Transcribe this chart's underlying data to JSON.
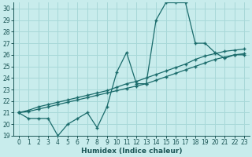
{
  "xlabel": "Humidex (Indice chaleur)",
  "bg_color": "#c8ecec",
  "grid_color": "#a8d8d8",
  "line_color": "#1a6b6b",
  "x": [
    0,
    1,
    2,
    3,
    4,
    5,
    6,
    7,
    8,
    9,
    10,
    11,
    12,
    13,
    14,
    15,
    16,
    17,
    18,
    19,
    20,
    21,
    22,
    23
  ],
  "y_main": [
    21,
    20.5,
    20.5,
    20.5,
    19,
    20,
    20.5,
    21,
    19.7,
    21.5,
    24.5,
    26.2,
    23.5,
    23.5,
    29,
    30.5,
    30.5,
    30.5,
    27,
    27,
    26.2,
    25.7,
    26,
    26
  ],
  "y_line1": [
    21.0,
    21.1,
    21.3,
    21.5,
    21.7,
    21.9,
    22.1,
    22.3,
    22.5,
    22.7,
    22.9,
    23.1,
    23.3,
    23.5,
    23.8,
    24.1,
    24.4,
    24.7,
    25.0,
    25.3,
    25.6,
    25.8,
    26.0,
    26.1
  ],
  "y_line2": [
    21.0,
    21.2,
    21.5,
    21.7,
    21.9,
    22.1,
    22.3,
    22.5,
    22.7,
    22.9,
    23.2,
    23.5,
    23.7,
    24.0,
    24.3,
    24.6,
    24.9,
    25.2,
    25.6,
    25.9,
    26.1,
    26.3,
    26.4,
    26.5
  ],
  "ylim": [
    19,
    30.5
  ],
  "xlim": [
    -0.5,
    23.5
  ],
  "yticks": [
    19,
    20,
    21,
    22,
    23,
    24,
    25,
    26,
    27,
    28,
    29,
    30
  ],
  "xticks": [
    0,
    1,
    2,
    3,
    4,
    5,
    6,
    7,
    8,
    9,
    10,
    11,
    12,
    13,
    14,
    15,
    16,
    17,
    18,
    19,
    20,
    21,
    22,
    23
  ],
  "tick_fontsize": 5.5,
  "xlabel_fontsize": 6.5
}
